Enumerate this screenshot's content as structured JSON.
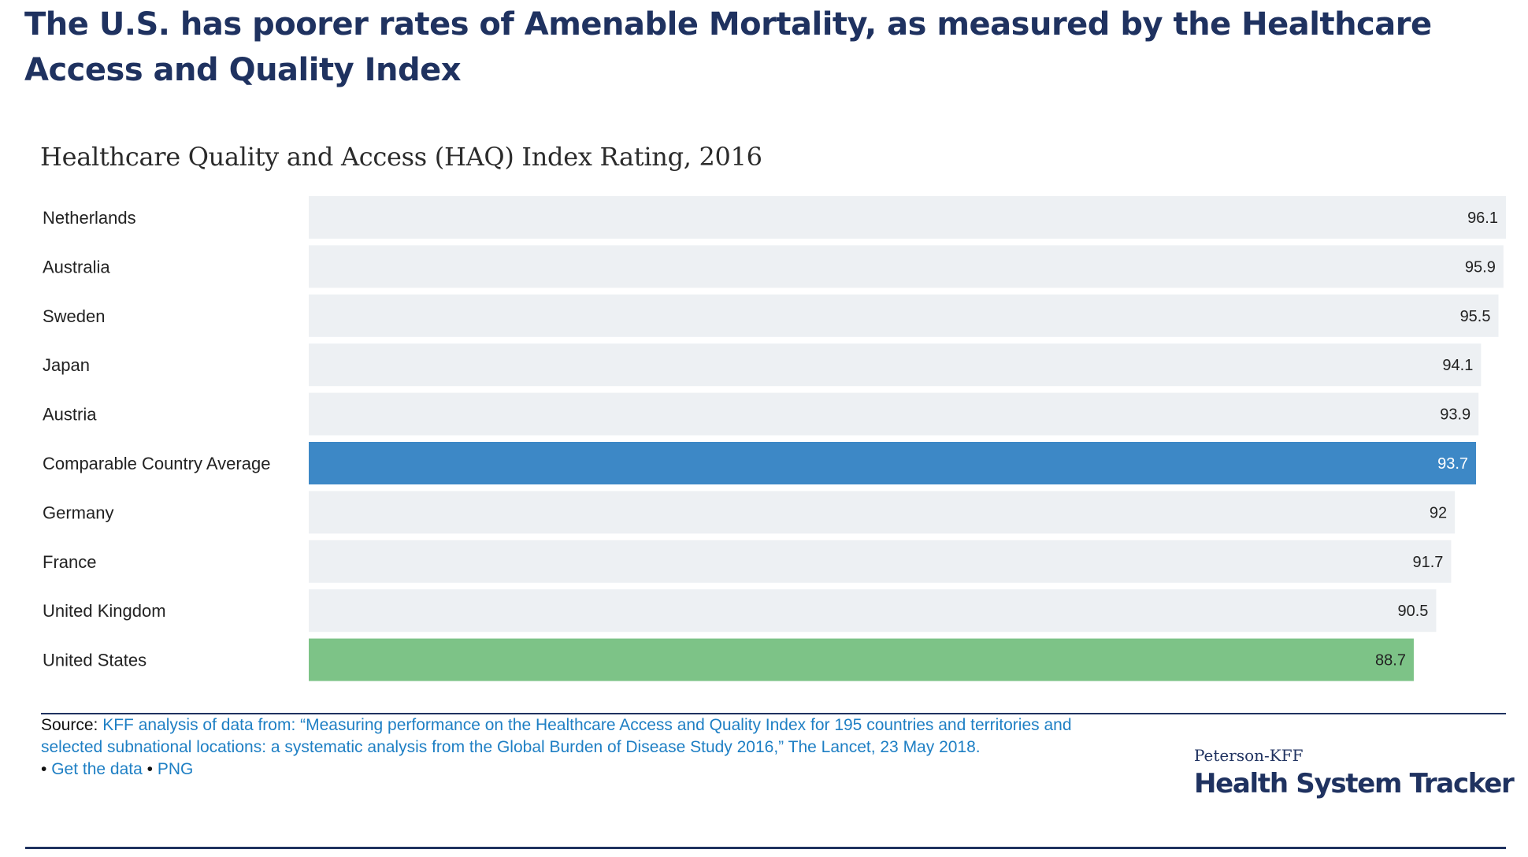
{
  "headline": "The U.S. has poorer rates of Amenable Mortality, as measured by the Healthcare Access and Quality Index",
  "chart_data": {
    "type": "bar",
    "orientation": "horizontal",
    "title": "Healthcare Quality and Access (HAQ) Index Rating, 2016",
    "xlabel": "",
    "ylabel": "",
    "grid": false,
    "categories": [
      "Netherlands",
      "Australia",
      "Sweden",
      "Japan",
      "Austria",
      "Comparable Country Average",
      "Germany",
      "France",
      "United Kingdom",
      "United States"
    ],
    "values": [
      96.1,
      95.9,
      95.5,
      94.1,
      93.9,
      93.7,
      92,
      91.7,
      90.5,
      88.7
    ],
    "value_labels": [
      "96.1",
      "95.9",
      "95.5",
      "94.1",
      "93.9",
      "93.7",
      "92",
      "91.7",
      "90.5",
      "88.7"
    ],
    "xlim": [
      0,
      96.1
    ],
    "colors": {
      "default": "#edf0f3",
      "highlight_average": "#3d88c6",
      "highlight_us": "#7dc387",
      "label_dark": "#222222",
      "label_light": "#ffffff"
    },
    "highlights": {
      "Comparable Country Average": "highlight_average",
      "United States": "highlight_us"
    }
  },
  "source": {
    "prefix": "Source:",
    "text": "KFF analysis of data from: “Measuring performance on the Healthcare Access and Quality Index for 195 countries and territories and selected subnational locations: a systematic analysis from the Global Burden of Disease Study 2016,” The Lancet, 23 May 2018.",
    "bullet": "•",
    "get_data_label": "Get the data",
    "png_label": "PNG"
  },
  "logo": {
    "top_text": "Peterson-KFF",
    "main_text": "Health System Tracker"
  },
  "colors": {
    "brand_navy": "#1f3260",
    "link_blue": "#1e7fc4"
  }
}
